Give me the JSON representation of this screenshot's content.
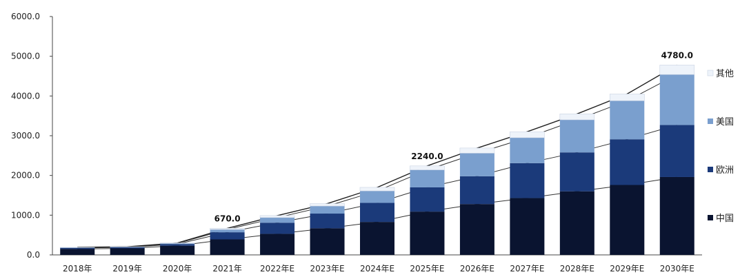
{
  "chart_data": {
    "type": "bar",
    "stacked": true,
    "categories": [
      "2018年",
      "2019年",
      "2020年",
      "2021年",
      "2022年E",
      "2023年E",
      "2024年E",
      "2025年E",
      "2026年E",
      "2027年E",
      "2028年E",
      "2029年E",
      "2030年E"
    ],
    "series": [
      {
        "name": "中国",
        "values": [
          150,
          165,
          230,
          390,
          530,
          670,
          830,
          1090,
          1280,
          1430,
          1600,
          1760,
          1960
        ]
      },
      {
        "name": "欧洲",
        "values": [
          25,
          25,
          40,
          180,
          280,
          370,
          480,
          610,
          700,
          880,
          980,
          1150,
          1310
        ]
      },
      {
        "name": "美国",
        "values": [
          10,
          10,
          20,
          70,
          130,
          190,
          300,
          440,
          580,
          640,
          820,
          970,
          1270
        ]
      },
      {
        "name": "其他",
        "values": [
          5,
          5,
          10,
          30,
          50,
          60,
          90,
          100,
          130,
          150,
          150,
          170,
          240
        ]
      }
    ],
    "totals": [
      190,
      205,
      300,
      670,
      990,
      1290,
      1700,
      2240,
      2690,
      3100,
      3550,
      4050,
      4780
    ],
    "annotations": [
      {
        "category": "2021年",
        "text": "670.0"
      },
      {
        "category": "2025年E",
        "text": "2240.0"
      },
      {
        "category": "2030年E",
        "text": "4780.0"
      }
    ],
    "y_ticks": [
      "0.0",
      "1000.0",
      "2000.0",
      "3000.0",
      "4000.0",
      "5000.0",
      "6000.0"
    ],
    "ylim": [
      0,
      6000
    ],
    "grid": false,
    "legend_position": "right",
    "colors": {
      "中国": "#0a1430",
      "欧洲": "#1b3a7a",
      "美国": "#7a9fce",
      "其他": "#eef3fa"
    }
  }
}
